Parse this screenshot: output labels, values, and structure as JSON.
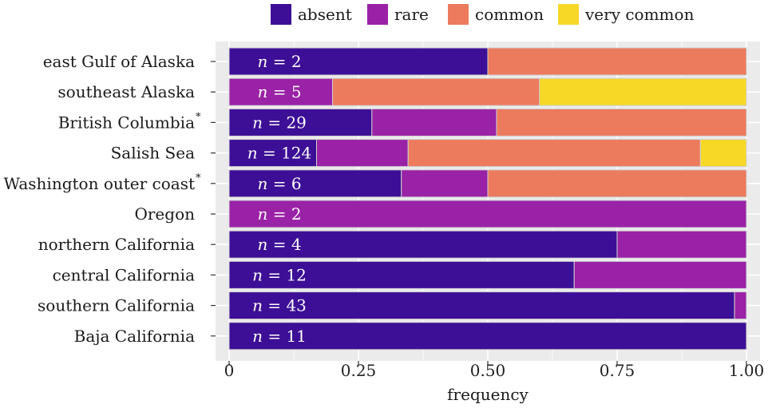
{
  "chart_data": {
    "type": "bar",
    "orientation": "horizontal",
    "stacked": true,
    "xlabel": "frequency",
    "xlim": [
      0,
      1
    ],
    "x_ticks": [
      "0",
      "0.25",
      "0.50",
      "0.75",
      "1.00"
    ],
    "x_tick_values": [
      0,
      0.25,
      0.5,
      0.75,
      1.0
    ],
    "grid": true,
    "legend_position": "top",
    "categories": [
      {
        "label": "east Gulf of Alaska",
        "sup": "",
        "n": 2
      },
      {
        "label": "southeast Alaska",
        "sup": "",
        "n": 5
      },
      {
        "label": "British Columbia",
        "sup": "*",
        "n": 29
      },
      {
        "label": "Salish Sea",
        "sup": "",
        "n": 124
      },
      {
        "label": "Washington outer coast",
        "sup": "*",
        "n": 6
      },
      {
        "label": "Oregon",
        "sup": "",
        "n": 2
      },
      {
        "label": "northern California",
        "sup": "",
        "n": 4
      },
      {
        "label": "central California",
        "sup": "",
        "n": 12
      },
      {
        "label": "southern California",
        "sup": "",
        "n": 43
      },
      {
        "label": "Baja California",
        "sup": "",
        "n": 11
      }
    ],
    "series": [
      {
        "name": "absent",
        "color": "#3d0f96",
        "values": [
          0.5,
          0.0,
          0.276,
          0.169,
          0.333,
          0.0,
          0.75,
          0.667,
          0.977,
          1.0
        ]
      },
      {
        "name": "rare",
        "color": "#9a22a6",
        "values": [
          0.0,
          0.2,
          0.241,
          0.177,
          0.167,
          1.0,
          0.25,
          0.333,
          0.023,
          0.0
        ]
      },
      {
        "name": "common",
        "color": "#ec7a5d",
        "values": [
          0.5,
          0.4,
          0.483,
          0.565,
          0.5,
          0.0,
          0.0,
          0.0,
          0.0,
          0.0
        ]
      },
      {
        "name": "very common",
        "color": "#f7d826",
        "values": [
          0.0,
          0.4,
          0.0,
          0.089,
          0.0,
          0.0,
          0.0,
          0.0,
          0.0,
          0.0
        ]
      }
    ]
  }
}
